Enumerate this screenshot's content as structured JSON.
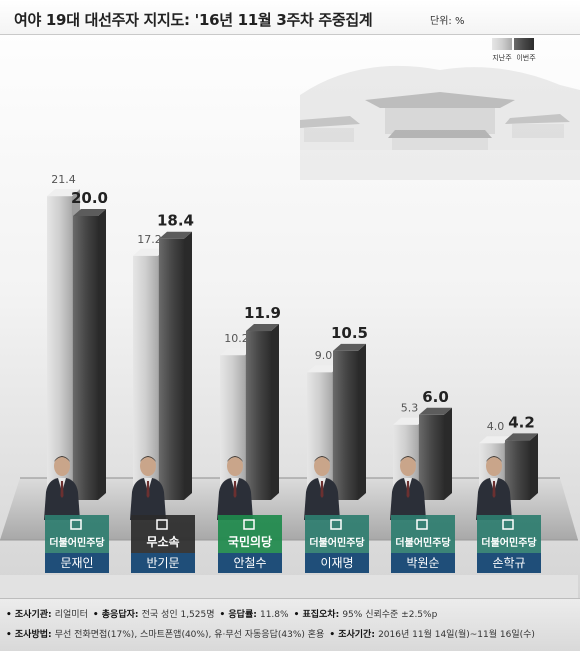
{
  "title": "여야 19대 대선주자 지지도: '16년 11월 3주차 주중집계",
  "unit": "단위: %",
  "chart_data": {
    "type": "bar",
    "title": "여야 19대 대선주자 지지도: '16년 11월 3주차 주중집계",
    "unit": "단위: %",
    "ylim": [
      0,
      23
    ],
    "legend_position": "top-right",
    "categories": [
      "문재인",
      "반기문",
      "안철수",
      "이재명",
      "박원순",
      "손학규"
    ],
    "parties": [
      "더불어민주당",
      "무소속",
      "국민의당",
      "더불어민주당",
      "더불어민주당",
      "더불어민주당"
    ],
    "series": [
      {
        "name": "지난주",
        "values": [
          21.4,
          17.2,
          10.2,
          9.0,
          5.3,
          4.0
        ]
      },
      {
        "name": "이번주",
        "values": [
          20.0,
          18.4,
          11.9,
          10.5,
          6.0,
          4.2
        ]
      }
    ]
  },
  "colors": {
    "last_week": "#c2c2c2",
    "this_week": "#474747",
    "democratic": "#2e7d6f",
    "independent": "#2b2b2b",
    "peoples_party": "#1e8a4c",
    "name_label": "#1f4e79"
  },
  "footer": {
    "line1": [
      {
        "label": "조사기관:",
        "value": "리얼미터"
      },
      {
        "label": "총응답자:",
        "value": "전국 성인 1,525명"
      },
      {
        "label": "응답률:",
        "value": "11.8%"
      },
      {
        "label": "표집오차:",
        "value": "95% 신뢰수준 ±2.5%p"
      }
    ],
    "line2": [
      {
        "label": "조사방법:",
        "value": "무선 전화면접(17%), 스마트폰앱(40%), 유·무선 자동응답(43%) 혼용"
      },
      {
        "label": "조사기간:",
        "value": "2016년 11월 14일(월)~11월 16일(수)"
      }
    ]
  }
}
